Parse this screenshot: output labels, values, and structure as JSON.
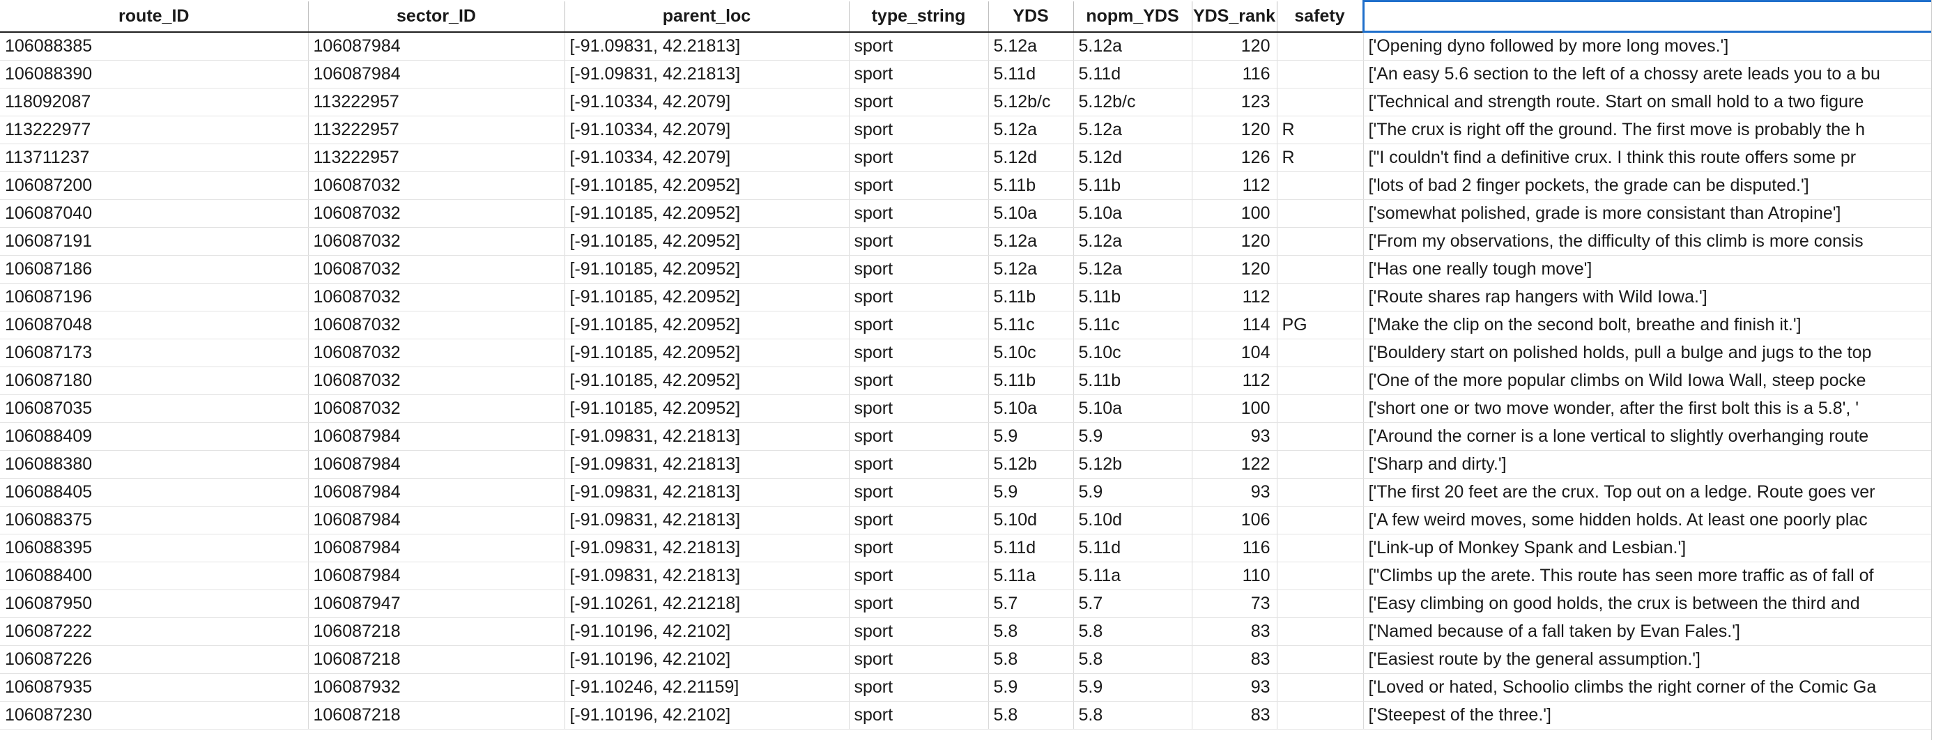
{
  "headers": [
    "route_ID",
    "sector_ID",
    "parent_loc",
    "type_string",
    "YDS",
    "nopm_YDS",
    "YDS_rank",
    "safety",
    ""
  ],
  "rows": [
    [
      "106088385",
      "106087984",
      "[-91.09831, 42.21813]",
      "sport",
      "5.12a",
      "5.12a",
      "120",
      "",
      "['Opening dyno followed by more long moves.']"
    ],
    [
      "106088390",
      "106087984",
      "[-91.09831, 42.21813]",
      "sport",
      "5.11d",
      "5.11d",
      "116",
      "",
      "['An easy 5.6 section to the left of a chossy arete leads you to a bu"
    ],
    [
      "118092087",
      "113222957",
      "[-91.10334, 42.2079]",
      "sport",
      "5.12b/c",
      "5.12b/c",
      "123",
      "",
      "['Technical and strength route. Start on small hold to a two figure"
    ],
    [
      "113222977",
      "113222957",
      "[-91.10334, 42.2079]",
      "sport",
      "5.12a",
      "5.12a",
      "120",
      "R",
      "['The crux is right off the ground. The first move is probably the h"
    ],
    [
      "113711237",
      "113222957",
      "[-91.10334, 42.2079]",
      "sport",
      "5.12d",
      "5.12d",
      "126",
      "R",
      "[\"I couldn't find a definitive crux. I think this route offers some pr"
    ],
    [
      "106087200",
      "106087032",
      "[-91.10185, 42.20952]",
      "sport",
      "5.11b",
      "5.11b",
      "112",
      "",
      "['lots of bad 2 finger pockets, the grade can be disputed.']"
    ],
    [
      "106087040",
      "106087032",
      "[-91.10185, 42.20952]",
      "sport",
      "5.10a",
      "5.10a",
      "100",
      "",
      "['somewhat polished, grade is more consistant than Atropine']"
    ],
    [
      "106087191",
      "106087032",
      "[-91.10185, 42.20952]",
      "sport",
      "5.12a",
      "5.12a",
      "120",
      "",
      "['From my observations, the difficulty of this climb is more consis"
    ],
    [
      "106087186",
      "106087032",
      "[-91.10185, 42.20952]",
      "sport",
      "5.12a",
      "5.12a",
      "120",
      "",
      "['Has one really tough move']"
    ],
    [
      "106087196",
      "106087032",
      "[-91.10185, 42.20952]",
      "sport",
      "5.11b",
      "5.11b",
      "112",
      "",
      "['Route shares rap hangers with Wild Iowa.']"
    ],
    [
      "106087048",
      "106087032",
      "[-91.10185, 42.20952]",
      "sport",
      "5.11c",
      "5.11c",
      "114",
      "PG",
      "['Make the clip on the second bolt, breathe and finish it.']"
    ],
    [
      "106087173",
      "106087032",
      "[-91.10185, 42.20952]",
      "sport",
      "5.10c",
      "5.10c",
      "104",
      "",
      "['Bouldery start on polished holds, pull a bulge and jugs to the top"
    ],
    [
      "106087180",
      "106087032",
      "[-91.10185, 42.20952]",
      "sport",
      "5.11b",
      "5.11b",
      "112",
      "",
      "['One of the more popular climbs on Wild Iowa Wall, steep pocke"
    ],
    [
      "106087035",
      "106087032",
      "[-91.10185, 42.20952]",
      "sport",
      "5.10a",
      "5.10a",
      "100",
      "",
      "['short one or two move wonder, after the first bolt this is a 5.8', '"
    ],
    [
      "106088409",
      "106087984",
      "[-91.09831, 42.21813]",
      "sport",
      "5.9",
      "5.9",
      "93",
      "",
      "['Around the corner is a lone vertical to slightly overhanging route"
    ],
    [
      "106088380",
      "106087984",
      "[-91.09831, 42.21813]",
      "sport",
      "5.12b",
      "5.12b",
      "122",
      "",
      "['Sharp and dirty.']"
    ],
    [
      "106088405",
      "106087984",
      "[-91.09831, 42.21813]",
      "sport",
      "5.9",
      "5.9",
      "93",
      "",
      "['The first 20 feet are the crux. Top out on a ledge. Route goes ver"
    ],
    [
      "106088375",
      "106087984",
      "[-91.09831, 42.21813]",
      "sport",
      "5.10d",
      "5.10d",
      "106",
      "",
      "['A few weird moves, some hidden holds. At least one poorly plac"
    ],
    [
      "106088395",
      "106087984",
      "[-91.09831, 42.21813]",
      "sport",
      "5.11d",
      "5.11d",
      "116",
      "",
      "['Link-up of Monkey Spank and Lesbian.']"
    ],
    [
      "106088400",
      "106087984",
      "[-91.09831, 42.21813]",
      "sport",
      "5.11a",
      "5.11a",
      "110",
      "",
      "[\"Climbs up the arete. This route has seen more traffic as of fall of"
    ],
    [
      "106087950",
      "106087947",
      "[-91.10261, 42.21218]",
      "sport",
      "5.7",
      "5.7",
      "73",
      "",
      "['Easy climbing on good holds, the crux is between the  third and"
    ],
    [
      "106087222",
      "106087218",
      "[-91.10196, 42.2102]",
      "sport",
      "5.8",
      "5.8",
      "83",
      "",
      "['Named because of a fall taken by Evan Fales.']"
    ],
    [
      "106087226",
      "106087218",
      "[-91.10196, 42.2102]",
      "sport",
      "5.8",
      "5.8",
      "83",
      "",
      "['Easiest route by the general assumption.']"
    ],
    [
      "106087935",
      "106087932",
      "[-91.10246, 42.21159]",
      "sport",
      "5.9",
      "5.9",
      "93",
      "",
      "['Loved or hated, Schoolio climbs the right corner of the Comic Ga"
    ],
    [
      "106087230",
      "106087218",
      "[-91.10196, 42.2102]",
      "sport",
      "5.8",
      "5.8",
      "83",
      "",
      "['Steepest of the three.']"
    ]
  ],
  "colors": {
    "active_cell_border": "#1f6fcb",
    "grid_line": "#dadada",
    "header_rule": "#1f1f1f"
  }
}
